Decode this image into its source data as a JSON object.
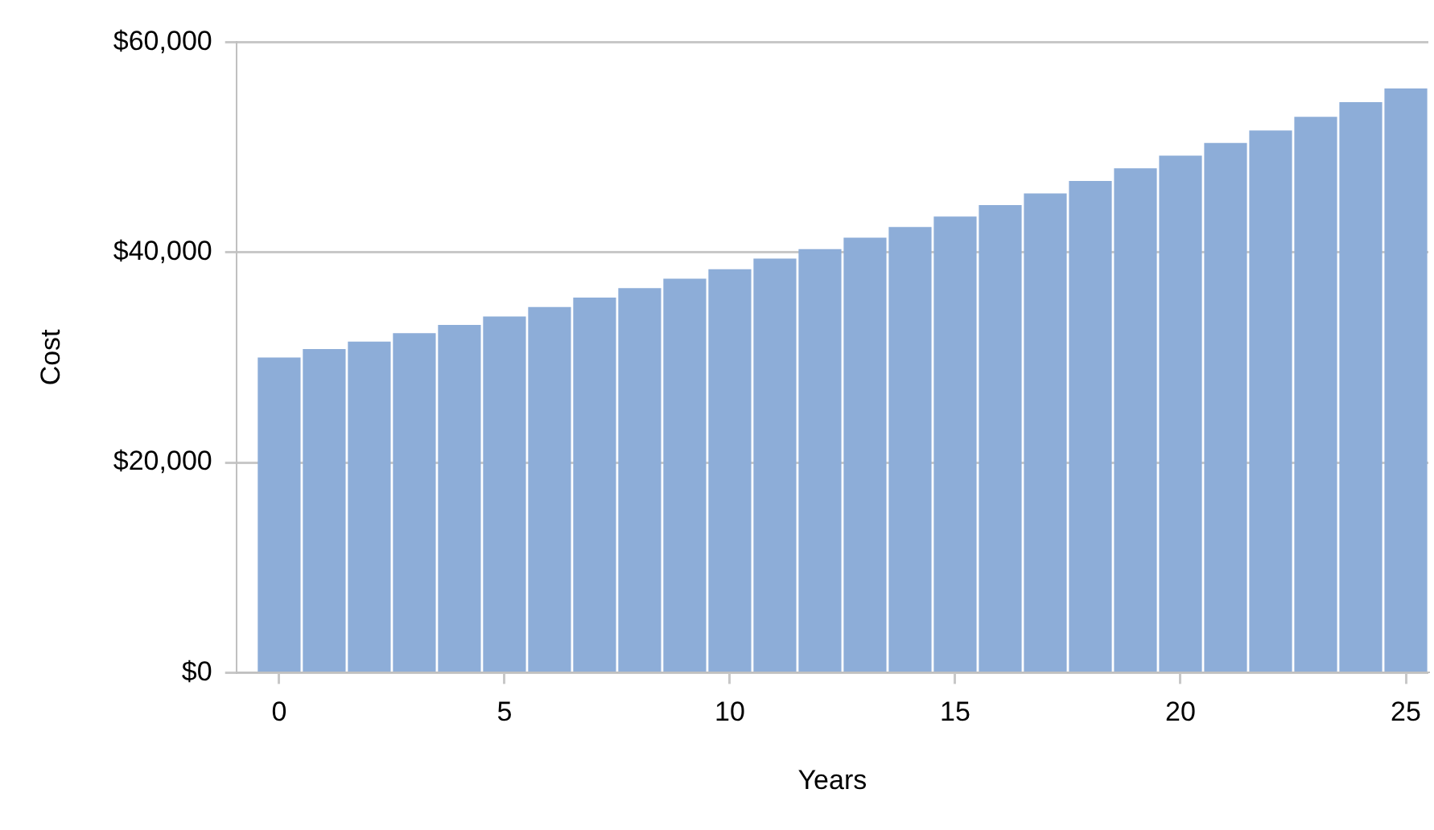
{
  "chart_data": {
    "type": "bar",
    "xlabel": "Years",
    "ylabel": "Cost",
    "x": [
      0,
      1,
      2,
      3,
      4,
      5,
      6,
      7,
      8,
      9,
      10,
      11,
      12,
      13,
      14,
      15,
      16,
      17,
      18,
      19,
      20,
      21,
      22,
      23,
      24,
      25
    ],
    "values": [
      30000,
      30800,
      31500,
      32300,
      33100,
      33900,
      34800,
      35700,
      36600,
      37500,
      38400,
      39400,
      40300,
      41400,
      42400,
      43400,
      44500,
      45600,
      46800,
      48000,
      49200,
      50400,
      51600,
      52900,
      54300,
      55600
    ],
    "color": "#8dadd8",
    "xlim": [
      -0.95,
      25.5
    ],
    "xticks": [
      0,
      5,
      10,
      15,
      20,
      25
    ],
    "ylim": [
      0,
      60000
    ],
    "yticks": [
      {
        "value": 0,
        "label": "$0"
      },
      {
        "value": 20000,
        "label": "$20,000"
      },
      {
        "value": 40000,
        "label": "$40,000"
      },
      {
        "value": 60000,
        "label": "$60,000"
      }
    ],
    "grid": "y",
    "legend": false
  }
}
